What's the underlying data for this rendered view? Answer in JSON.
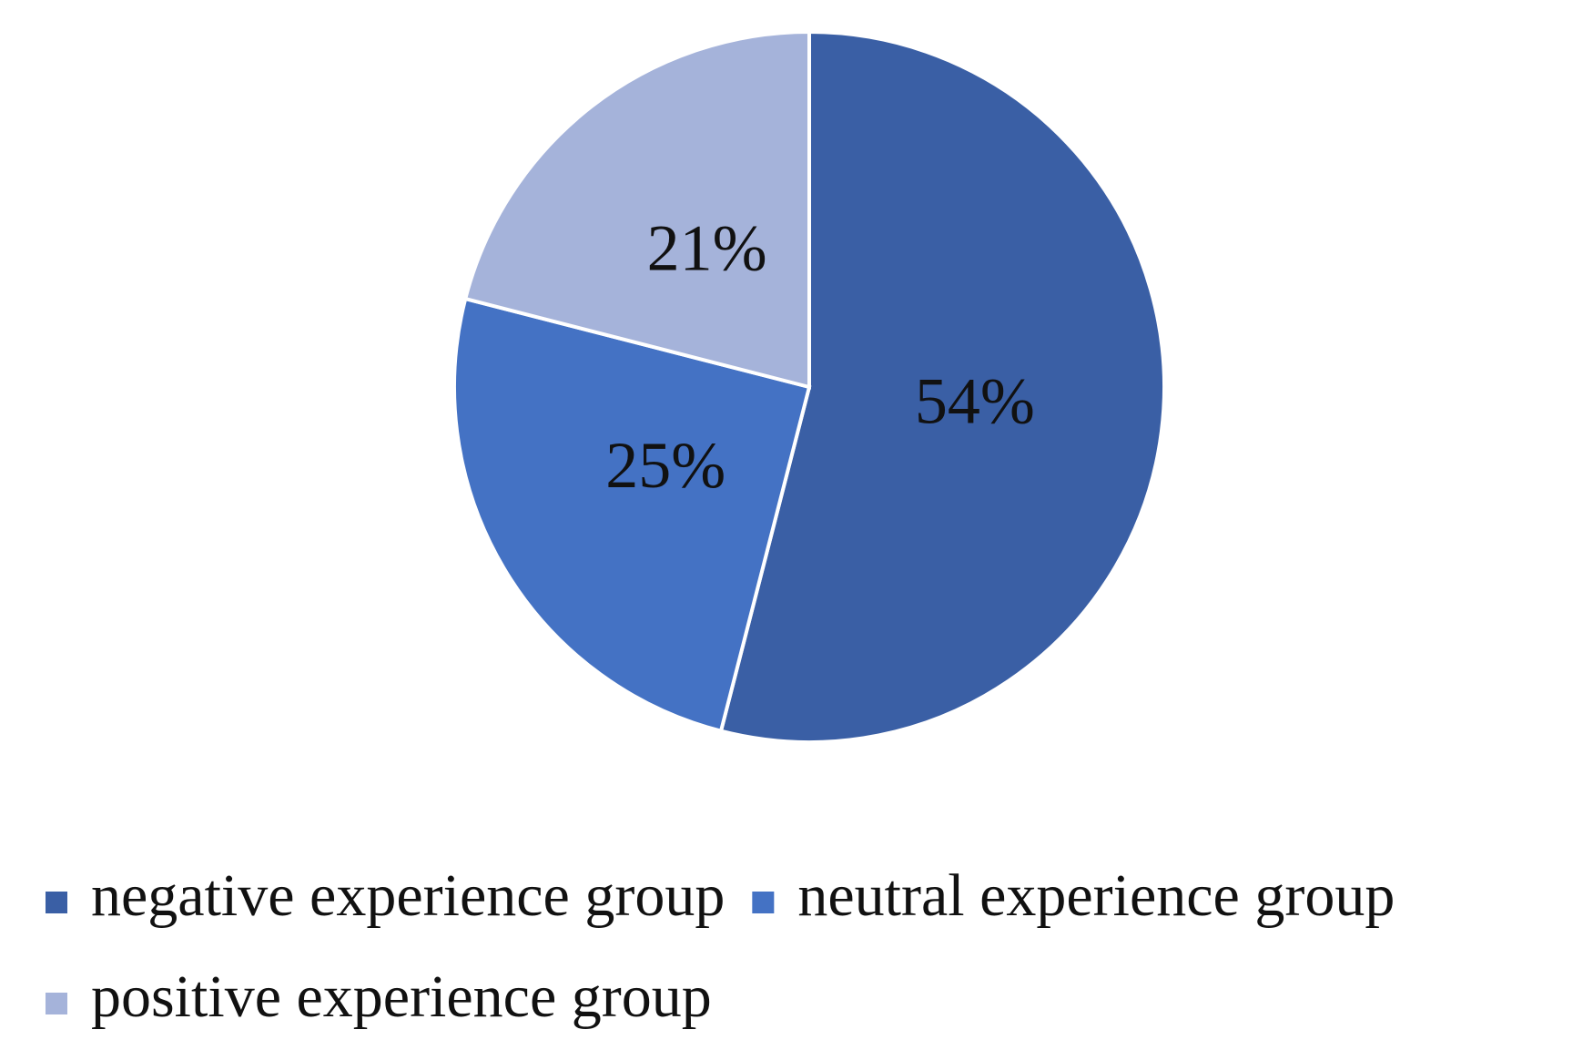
{
  "chart_data": {
    "type": "pie",
    "categories": [
      "negative experience group",
      "neutral experience group",
      "positive experience group"
    ],
    "values": [
      54,
      25,
      21
    ],
    "value_labels": [
      "54%",
      "25%",
      "21%"
    ],
    "colors": [
      "#3a5fa5",
      "#4472c4",
      "#a5b3da"
    ],
    "legend": "bottom"
  }
}
